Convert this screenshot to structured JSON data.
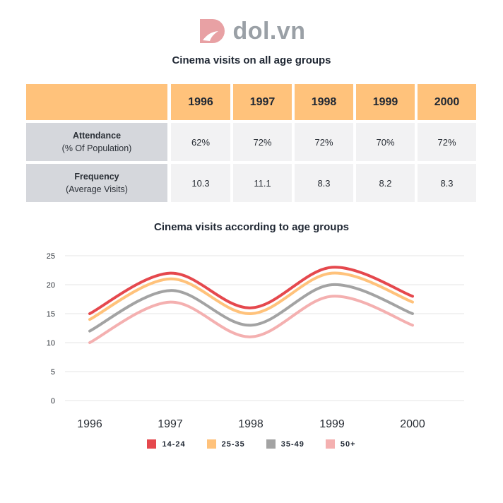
{
  "brand": {
    "name": "dol.vn",
    "logo_color": "#e8a1a4"
  },
  "table": {
    "title": "Cinema visits on all age groups",
    "years": [
      "1996",
      "1997",
      "1998",
      "1999",
      "2000"
    ],
    "rows": [
      {
        "label": "Attendance",
        "sublabel": "(% Of Population)",
        "values": [
          "62%",
          "72%",
          "72%",
          "70%",
          "72%"
        ]
      },
      {
        "label": "Frequency",
        "sublabel": "(Average Visits)",
        "values": [
          "10.3",
          "11.1",
          "8.3",
          "8.2",
          "8.3"
        ]
      }
    ],
    "colors": {
      "header": "#ffc27b",
      "row_header": "#d5d7dc",
      "cell": "#f2f2f3"
    }
  },
  "chart_data": {
    "type": "line",
    "title": "Cinema visits according to age groups",
    "xlabel": "",
    "ylabel": "",
    "x": [
      "1996",
      "1997",
      "1998",
      "1999",
      "2000"
    ],
    "ylim": [
      0,
      25
    ],
    "yticks": [
      0,
      5,
      10,
      15,
      20,
      25
    ],
    "grid": true,
    "legend_position": "bottom",
    "series": [
      {
        "name": "14-24",
        "color": "#e5484d",
        "values": [
          15,
          22,
          16,
          23,
          18
        ]
      },
      {
        "name": "25-35",
        "color": "#ffc27b",
        "values": [
          14,
          21,
          15,
          22,
          17
        ]
      },
      {
        "name": "35-49",
        "color": "#a3a3a3",
        "values": [
          12,
          19,
          13,
          20,
          15
        ]
      },
      {
        "name": "50+",
        "color": "#f4b0b0",
        "values": [
          10,
          17,
          11,
          18,
          13
        ]
      }
    ]
  }
}
